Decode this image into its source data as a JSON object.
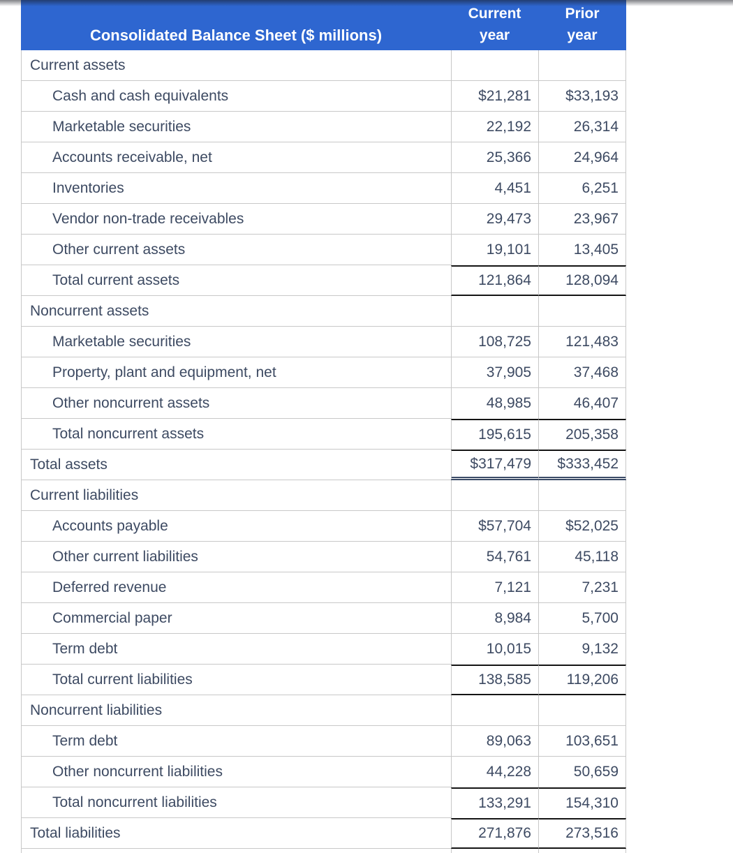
{
  "table": {
    "header": {
      "title": "Consolidated Balance Sheet ($ millions)",
      "col_current_line1": "Current",
      "col_current_line2": "year",
      "col_prior_line1": "Prior",
      "col_prior_line2": "year"
    },
    "rows": [
      {
        "label": "Current assets",
        "current": "",
        "prior": "",
        "section": true
      },
      {
        "label": "Cash and cash equivalents",
        "current": "$21,281",
        "prior": "$33,193",
        "indent": true
      },
      {
        "label": "Marketable securities",
        "current": "22,192",
        "prior": "26,314",
        "indent": true
      },
      {
        "label": "Accounts receivable, net",
        "current": "25,366",
        "prior": "24,964",
        "indent": true
      },
      {
        "label": "Inventories",
        "current": "4,451",
        "prior": "6,251",
        "indent": true
      },
      {
        "label": "Vendor non-trade receivables",
        "current": "29,473",
        "prior": "23,967",
        "indent": true
      },
      {
        "label": "Other current assets",
        "current": "19,101",
        "prior": "13,405",
        "indent": true
      },
      {
        "label": "Total current assets",
        "current": "121,864",
        "prior": "128,094",
        "indent": true,
        "top_black": true,
        "bottom_black": true
      },
      {
        "label": "Noncurrent assets",
        "current": "",
        "prior": "",
        "section": true
      },
      {
        "label": "Marketable securities",
        "current": "108,725",
        "prior": "121,483",
        "indent": true
      },
      {
        "label": "Property, plant and equipment, net",
        "current": "37,905",
        "prior": "37,468",
        "indent": true
      },
      {
        "label": "Other noncurrent assets",
        "current": "48,985",
        "prior": "46,407",
        "indent": true
      },
      {
        "label": "Total noncurrent assets",
        "current": "195,615",
        "prior": "205,358",
        "indent": true,
        "top_black": true
      },
      {
        "label": "Total assets",
        "current": "$317,479",
        "prior": "$333,452",
        "top_black": true,
        "double_bottom": true
      },
      {
        "label": "Current liabilities",
        "current": "",
        "prior": "",
        "section": true
      },
      {
        "label": "Accounts payable",
        "current": "$57,704",
        "prior": "$52,025",
        "indent": true
      },
      {
        "label": "Other current liabilities",
        "current": "54,761",
        "prior": "45,118",
        "indent": true
      },
      {
        "label": "Deferred revenue",
        "current": "7,121",
        "prior": "7,231",
        "indent": true
      },
      {
        "label": "Commercial paper",
        "current": "8,984",
        "prior": "5,700",
        "indent": true
      },
      {
        "label": "Term debt",
        "current": "10,015",
        "prior": "9,132",
        "indent": true
      },
      {
        "label": "Total current liabilities",
        "current": "138,585",
        "prior": "119,206",
        "indent": true,
        "top_black": true,
        "bottom_black": true
      },
      {
        "label": "Noncurrent liabilities",
        "current": "",
        "prior": "",
        "section": true
      },
      {
        "label": "Term debt",
        "current": "89,063",
        "prior": "103,651",
        "indent": true
      },
      {
        "label": "Other noncurrent liabilities",
        "current": "44,228",
        "prior": "50,659",
        "indent": true
      },
      {
        "label": "Total noncurrent liabilities",
        "current": "133,291",
        "prior": "154,310",
        "indent": true,
        "top_black": true
      },
      {
        "label": "Total liabilities",
        "current": "271,876",
        "prior": "273,516",
        "top_black": true,
        "bottom_black": true
      }
    ]
  },
  "colors": {
    "header_background": "#2e66d0",
    "header_text": "#ffffff",
    "body_text": "#3d4a62",
    "grid_line": "#c8c8c8",
    "total_rule": "#141414",
    "double_rule": "#3a4a66"
  }
}
